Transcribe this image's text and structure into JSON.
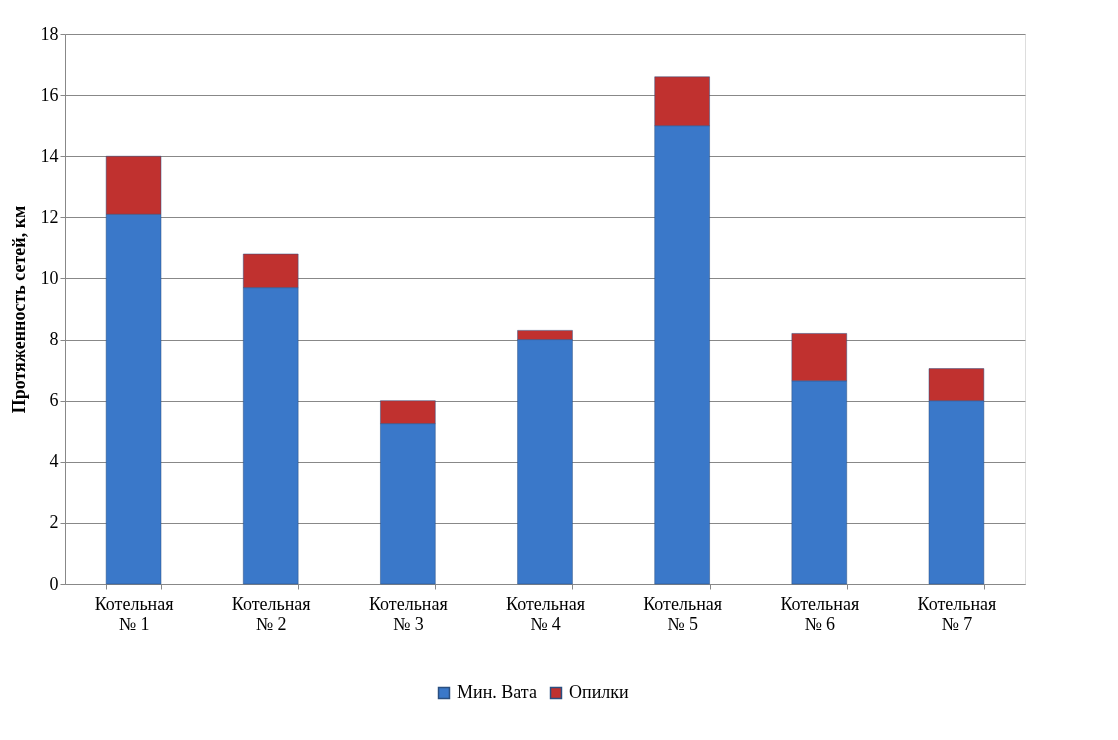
{
  "chart_data": {
    "type": "bar",
    "stacked": true,
    "ylabel": "Протяженность сетей, км",
    "categories": [
      "Котельная\n№ 1",
      "Котельная\n№ 2",
      "Котельная\n№ 3",
      "Котельная\n№ 4",
      "Котельная\n№ 5",
      "Котельная\n№ 6",
      "Котельная\n№ 7"
    ],
    "series": [
      {
        "name": "Мин. Вата",
        "color": "#3a78c9",
        "values": [
          12.1,
          9.7,
          5.25,
          8.0,
          15.0,
          6.65,
          6.0
        ]
      },
      {
        "name": "Опилки",
        "color": "#c0312f",
        "values": [
          1.9,
          1.1,
          0.75,
          0.3,
          1.6,
          1.55,
          1.05
        ]
      }
    ],
    "ylim": [
      0,
      18
    ],
    "yticks": [
      0,
      2,
      4,
      6,
      8,
      10,
      12,
      14,
      16,
      18
    ],
    "grid": "y",
    "legend": "bottom"
  }
}
